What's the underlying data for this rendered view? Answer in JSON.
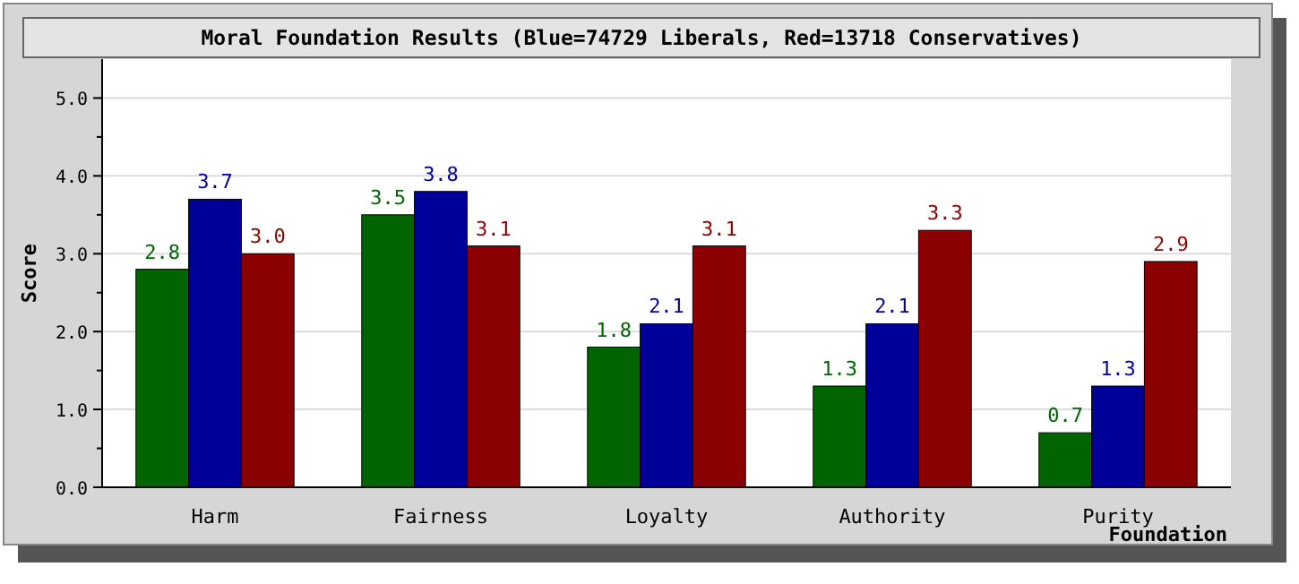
{
  "chart_data": {
    "type": "bar",
    "title": "Moral Foundation Results (Blue=74729 Liberals, Red=13718 Conservatives)",
    "xlabel": "Foundation",
    "ylabel": "Score",
    "categories": [
      "Harm",
      "Fairness",
      "Loyalty",
      "Authority",
      "Purity"
    ],
    "series": [
      {
        "color": "#006400",
        "values": [
          2.8,
          3.5,
          1.8,
          1.3,
          0.7
        ],
        "value_labels": [
          "2.8",
          "3.5",
          "1.8",
          "1.3",
          "0.7"
        ]
      },
      {
        "color": "#000099",
        "values": [
          3.7,
          3.8,
          2.1,
          2.1,
          1.3
        ],
        "value_labels": [
          "3.7",
          "3.8",
          "2.1",
          "2.1",
          "1.3"
        ]
      },
      {
        "color": "#8b0000",
        "values": [
          3.0,
          3.1,
          3.1,
          3.3,
          2.9
        ],
        "value_labels": [
          "3.0",
          "3.1",
          "3.1",
          "3.3",
          "2.9"
        ]
      }
    ],
    "ylim": [
      0,
      5.5
    ],
    "yticks": [
      {
        "value": 0,
        "label": "0.0"
      },
      {
        "value": 0.5,
        "label": null
      },
      {
        "value": 1,
        "label": "1.0"
      },
      {
        "value": 1.5,
        "label": null
      },
      {
        "value": 2,
        "label": "2.0"
      },
      {
        "value": 2.5,
        "label": null
      },
      {
        "value": 3,
        "label": "3.0"
      },
      {
        "value": 3.5,
        "label": null
      },
      {
        "value": 4,
        "label": "4.0"
      },
      {
        "value": 4.5,
        "label": null
      },
      {
        "value": 5,
        "label": "5.0"
      }
    ],
    "grid": "y"
  }
}
